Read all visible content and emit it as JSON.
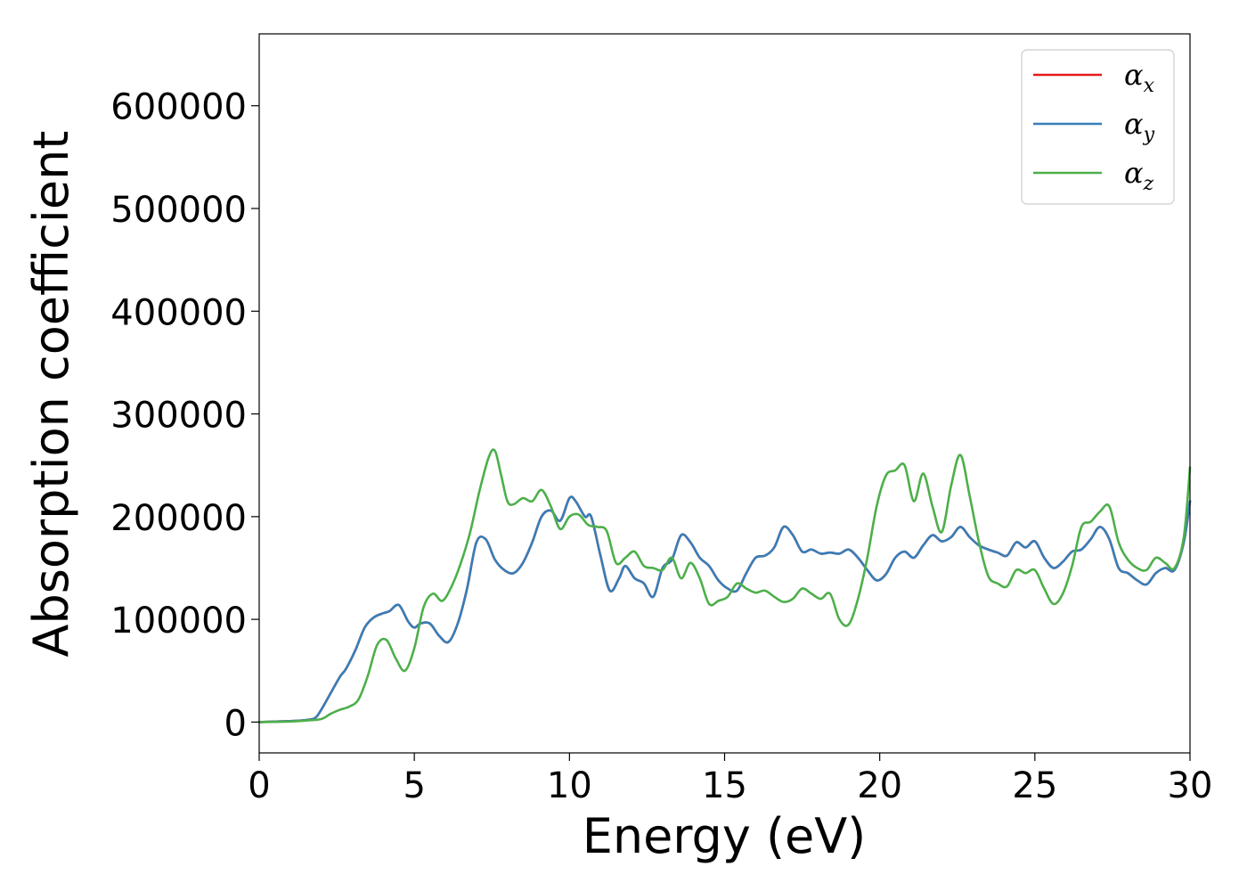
{
  "chart_data": {
    "type": "line",
    "xlabel": "Energy (eV)",
    "ylabel": "Absorption coefficient",
    "xlim": [
      0,
      30
    ],
    "ylim": [
      -30000,
      670000
    ],
    "xticks": [
      "0",
      "5",
      "10",
      "15",
      "20",
      "25",
      "30"
    ],
    "yticks": [
      "0",
      "100000",
      "200000",
      "300000",
      "400000",
      "500000",
      "600000"
    ],
    "grid": false,
    "legend_position": "top-right",
    "series": [
      {
        "name": "α",
        "subscript": "x",
        "color": "#e41a1c",
        "x": [
          0,
          1,
          1.5,
          1.8,
          2,
          2.3,
          2.6,
          2.8,
          3.1,
          3.4,
          3.7,
          4,
          4.2,
          4.5,
          4.8,
          5,
          5.2,
          5.5,
          5.8,
          6.1,
          6.4,
          6.7,
          7,
          7.3,
          7.6,
          7.9,
          8.2,
          8.5,
          8.8,
          9.1,
          9.4,
          9.7,
          10,
          10.2,
          10.5,
          10.7,
          11,
          11.3,
          11.6,
          11.8,
          12.1,
          12.4,
          12.7,
          13,
          13.3,
          13.6,
          13.9,
          14.2,
          14.5,
          14.8,
          15.1,
          15.4,
          15.7,
          16,
          16.3,
          16.6,
          16.9,
          17.2,
          17.5,
          17.8,
          18.1,
          18.4,
          18.7,
          19,
          19.3,
          19.6,
          19.9,
          20.2,
          20.5,
          20.8,
          21.1,
          21.4,
          21.7,
          22,
          22.3,
          22.6,
          22.9,
          23.2,
          23.5,
          23.8,
          24.1,
          24.4,
          24.7,
          25,
          25.3,
          25.6,
          25.9,
          26.2,
          26.5,
          26.8,
          27.1,
          27.4,
          27.7,
          28,
          28.3,
          28.6,
          28.9,
          29.2,
          29.5,
          29.8,
          30
        ],
        "y": [
          0,
          1000,
          2000,
          4000,
          12000,
          28000,
          44000,
          52000,
          70000,
          92000,
          102000,
          106000,
          108000,
          114000,
          98000,
          92000,
          96000,
          96000,
          84000,
          78000,
          96000,
          130000,
          175000,
          178000,
          158000,
          148000,
          145000,
          155000,
          175000,
          200000,
          206000,
          196000,
          218000,
          215000,
          200000,
          200000,
          162000,
          128000,
          140000,
          152000,
          140000,
          135000,
          122000,
          150000,
          158000,
          182000,
          175000,
          160000,
          152000,
          138000,
          130000,
          128000,
          145000,
          160000,
          162000,
          170000,
          190000,
          182000,
          166000,
          168000,
          164000,
          165000,
          164000,
          168000,
          160000,
          148000,
          138000,
          144000,
          160000,
          166000,
          160000,
          172000,
          182000,
          176000,
          180000,
          190000,
          180000,
          172000,
          168000,
          165000,
          162000,
          175000,
          170000,
          176000,
          160000,
          150000,
          156000,
          166000,
          168000,
          178000,
          190000,
          178000,
          150000,
          145000,
          138000,
          134000,
          145000,
          150000,
          148000,
          175000,
          215000
        ]
      },
      {
        "name": "α",
        "subscript": "y",
        "color": "#377eb8",
        "x": [
          0,
          1,
          1.5,
          1.8,
          2,
          2.3,
          2.6,
          2.8,
          3.1,
          3.4,
          3.7,
          4,
          4.2,
          4.5,
          4.8,
          5,
          5.2,
          5.5,
          5.8,
          6.1,
          6.4,
          6.7,
          7,
          7.3,
          7.6,
          7.9,
          8.2,
          8.5,
          8.8,
          9.1,
          9.4,
          9.7,
          10,
          10.2,
          10.5,
          10.7,
          11,
          11.3,
          11.6,
          11.8,
          12.1,
          12.4,
          12.7,
          13,
          13.3,
          13.6,
          13.9,
          14.2,
          14.5,
          14.8,
          15.1,
          15.4,
          15.7,
          16,
          16.3,
          16.6,
          16.9,
          17.2,
          17.5,
          17.8,
          18.1,
          18.4,
          18.7,
          19,
          19.3,
          19.6,
          19.9,
          20.2,
          20.5,
          20.8,
          21.1,
          21.4,
          21.7,
          22,
          22.3,
          22.6,
          22.9,
          23.2,
          23.5,
          23.8,
          24.1,
          24.4,
          24.7,
          25,
          25.3,
          25.6,
          25.9,
          26.2,
          26.5,
          26.8,
          27.1,
          27.4,
          27.7,
          28,
          28.3,
          28.6,
          28.9,
          29.2,
          29.5,
          29.8,
          30
        ],
        "y": [
          0,
          1000,
          2000,
          4000,
          12000,
          28000,
          44000,
          52000,
          70000,
          92000,
          102000,
          106000,
          108000,
          114000,
          98000,
          92000,
          96000,
          96000,
          84000,
          78000,
          96000,
          130000,
          175000,
          178000,
          158000,
          148000,
          145000,
          155000,
          175000,
          200000,
          206000,
          196000,
          218000,
          215000,
          200000,
          200000,
          162000,
          128000,
          140000,
          152000,
          140000,
          135000,
          122000,
          150000,
          158000,
          182000,
          175000,
          160000,
          152000,
          138000,
          130000,
          128000,
          145000,
          160000,
          162000,
          170000,
          190000,
          182000,
          166000,
          168000,
          164000,
          165000,
          164000,
          168000,
          160000,
          148000,
          138000,
          144000,
          160000,
          166000,
          160000,
          172000,
          182000,
          176000,
          180000,
          190000,
          180000,
          172000,
          168000,
          165000,
          162000,
          175000,
          170000,
          176000,
          160000,
          150000,
          156000,
          166000,
          168000,
          178000,
          190000,
          178000,
          150000,
          145000,
          138000,
          134000,
          145000,
          150000,
          148000,
          175000,
          215000
        ]
      },
      {
        "name": "α",
        "subscript": "z",
        "color": "#4daf4a",
        "x": [
          0,
          1,
          1.5,
          2,
          2.3,
          2.6,
          2.9,
          3.2,
          3.5,
          3.8,
          4.1,
          4.4,
          4.7,
          5,
          5.3,
          5.6,
          5.9,
          6.2,
          6.5,
          6.8,
          7.1,
          7.4,
          7.6,
          7.8,
          8,
          8.2,
          8.5,
          8.8,
          9.1,
          9.4,
          9.7,
          10,
          10.3,
          10.6,
          10.9,
          11.2,
          11.5,
          11.8,
          12.1,
          12.4,
          12.7,
          13,
          13.3,
          13.6,
          13.9,
          14.2,
          14.5,
          14.8,
          15.1,
          15.4,
          15.7,
          16,
          16.3,
          16.6,
          16.9,
          17.2,
          17.5,
          17.8,
          18.1,
          18.4,
          18.7,
          19,
          19.3,
          19.6,
          19.9,
          20.2,
          20.5,
          20.8,
          21.1,
          21.4,
          21.7,
          22,
          22.3,
          22.6,
          22.9,
          23.2,
          23.5,
          23.8,
          24.1,
          24.4,
          24.7,
          25,
          25.3,
          25.6,
          25.9,
          26.2,
          26.5,
          26.8,
          27.1,
          27.4,
          27.7,
          28,
          28.3,
          28.6,
          28.9,
          29.2,
          29.5,
          29.8,
          30
        ],
        "y": [
          0,
          500,
          1500,
          3000,
          8000,
          12000,
          15000,
          22000,
          45000,
          75000,
          80000,
          62000,
          50000,
          72000,
          112000,
          125000,
          118000,
          132000,
          155000,
          185000,
          225000,
          258000,
          264000,
          240000,
          215000,
          212000,
          218000,
          215000,
          226000,
          210000,
          188000,
          200000,
          202000,
          192000,
          190000,
          186000,
          155000,
          160000,
          166000,
          152000,
          150000,
          148000,
          160000,
          140000,
          155000,
          140000,
          115000,
          118000,
          122000,
          135000,
          130000,
          126000,
          128000,
          122000,
          117000,
          120000,
          130000,
          125000,
          120000,
          125000,
          100000,
          95000,
          120000,
          160000,
          210000,
          240000,
          245000,
          250000,
          215000,
          242000,
          210000,
          185000,
          230000,
          260000,
          220000,
          175000,
          142000,
          135000,
          132000,
          148000,
          145000,
          148000,
          130000,
          115000,
          125000,
          152000,
          190000,
          195000,
          205000,
          210000,
          175000,
          158000,
          150000,
          148000,
          160000,
          155000,
          150000,
          180000,
          248000
        ]
      }
    ]
  }
}
